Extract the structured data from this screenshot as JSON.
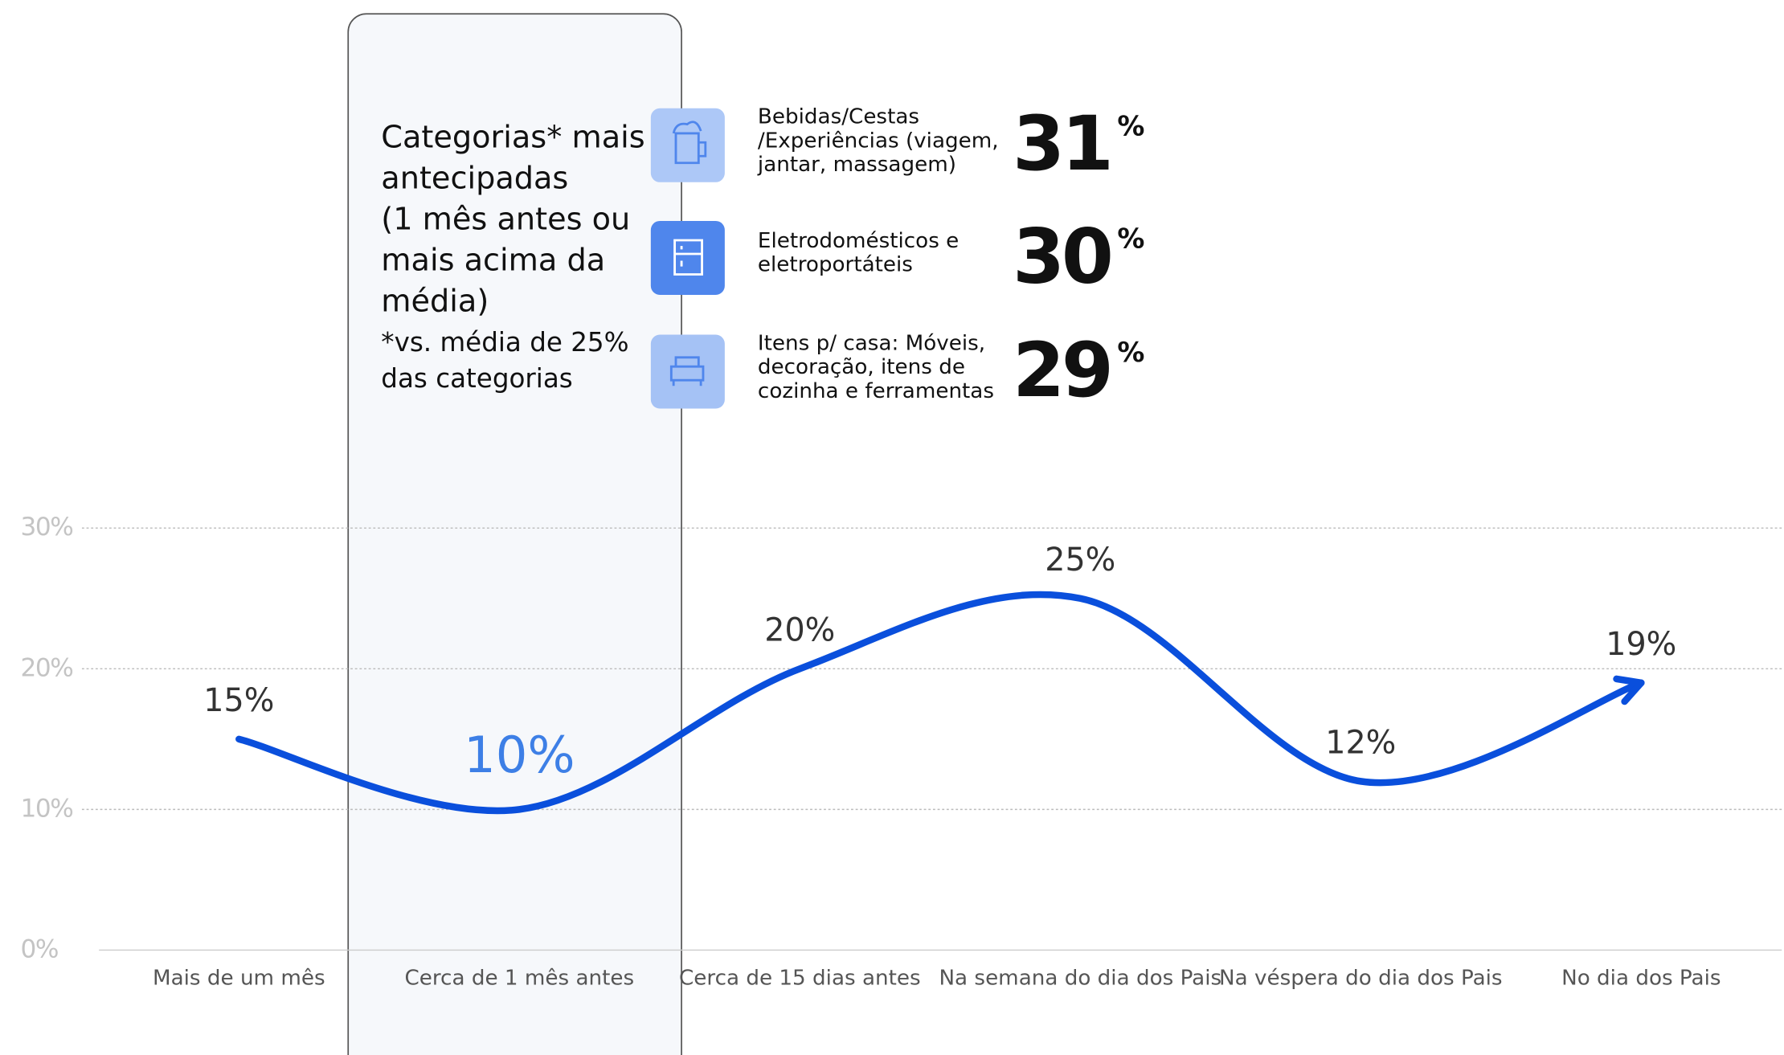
{
  "chart_data": {
    "type": "line",
    "categories": [
      "Mais de um mês",
      "Cerca de 1 mês antes",
      "Cerca de 15 dias antes",
      "Na semana do dia dos Pais",
      "Na véspera do dia dos Pais",
      "No dia dos Pais"
    ],
    "values": [
      15,
      10,
      20,
      25,
      12,
      19
    ],
    "value_labels": [
      "15%",
      "10%",
      "20%",
      "25%",
      "12%",
      "19%"
    ],
    "color": "#0a4fdc",
    "highlight_color": "#3d7fe6",
    "highlight": 1,
    "ylim": [
      0,
      30
    ],
    "yticks": [
      {
        "value": 0,
        "label": "0%"
      },
      {
        "value": 10,
        "label": "10%"
      },
      {
        "value": 20,
        "label": "20%"
      },
      {
        "value": 30,
        "label": "30%"
      }
    ],
    "grid": true
  },
  "panel": {
    "title": [
      "Categorias* mais",
      "antecipadas",
      "(1 mês antes ou",
      "mais acima da",
      "média)"
    ],
    "note": [
      "*vs. média de 25%",
      "das categorias"
    ],
    "items": [
      {
        "label": [
          "Bebidas/Cestas",
          "/Experiências (viagem,",
          "jantar, massagem)"
        ],
        "value": 31,
        "unit": "%",
        "color": "#adc8f7"
      },
      {
        "label": [
          "Eletrodomésticos e",
          "eletroportáteis"
        ],
        "value": 30,
        "unit": "%",
        "color": "#4f86ec"
      },
      {
        "label": [
          "Itens p/ casa: Móveis,",
          "decoração, itens  de",
          "cozinha e ferramentas"
        ],
        "value": 29,
        "unit": "%",
        "color": "#a5c2f5"
      }
    ]
  }
}
